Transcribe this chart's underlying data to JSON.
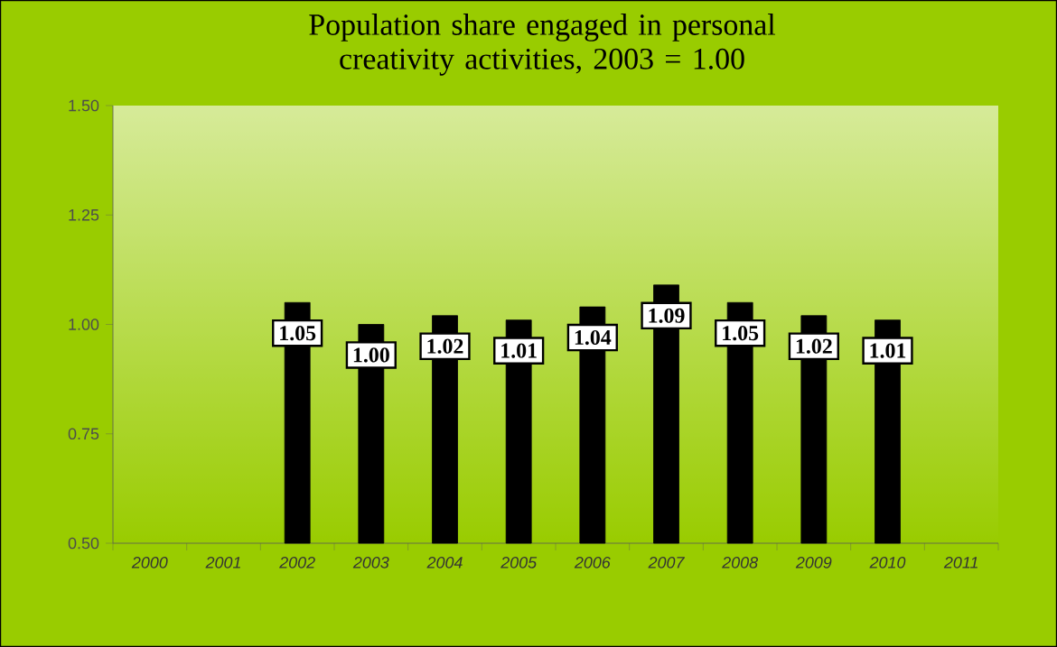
{
  "chart_data": {
    "type": "bar",
    "title": "Population share engaged in personal creativity activities, 2003 = 1.00",
    "categories": [
      "2000",
      "2001",
      "2002",
      "2003",
      "2004",
      "2005",
      "2006",
      "2007",
      "2008",
      "2009",
      "2010",
      "2011"
    ],
    "values": [
      null,
      null,
      1.05,
      1.0,
      1.02,
      1.01,
      1.04,
      1.09,
      1.05,
      1.02,
      1.01,
      null
    ],
    "value_labels": [
      null,
      null,
      "1.05",
      "1.00",
      "1.02",
      "1.01",
      "1.04",
      "1.09",
      "1.05",
      "1.02",
      "1.01",
      null
    ],
    "color": "#000000",
    "ylim": [
      0.5,
      1.5
    ],
    "yticks": [
      {
        "value": 0.5,
        "label": "0.50"
      },
      {
        "value": 0.75,
        "label": "0.75"
      },
      {
        "value": 1.0,
        "label": "1.00"
      },
      {
        "value": 1.25,
        "label": "1.25"
      },
      {
        "value": 1.5,
        "label": "1.50"
      }
    ],
    "grid": false
  }
}
